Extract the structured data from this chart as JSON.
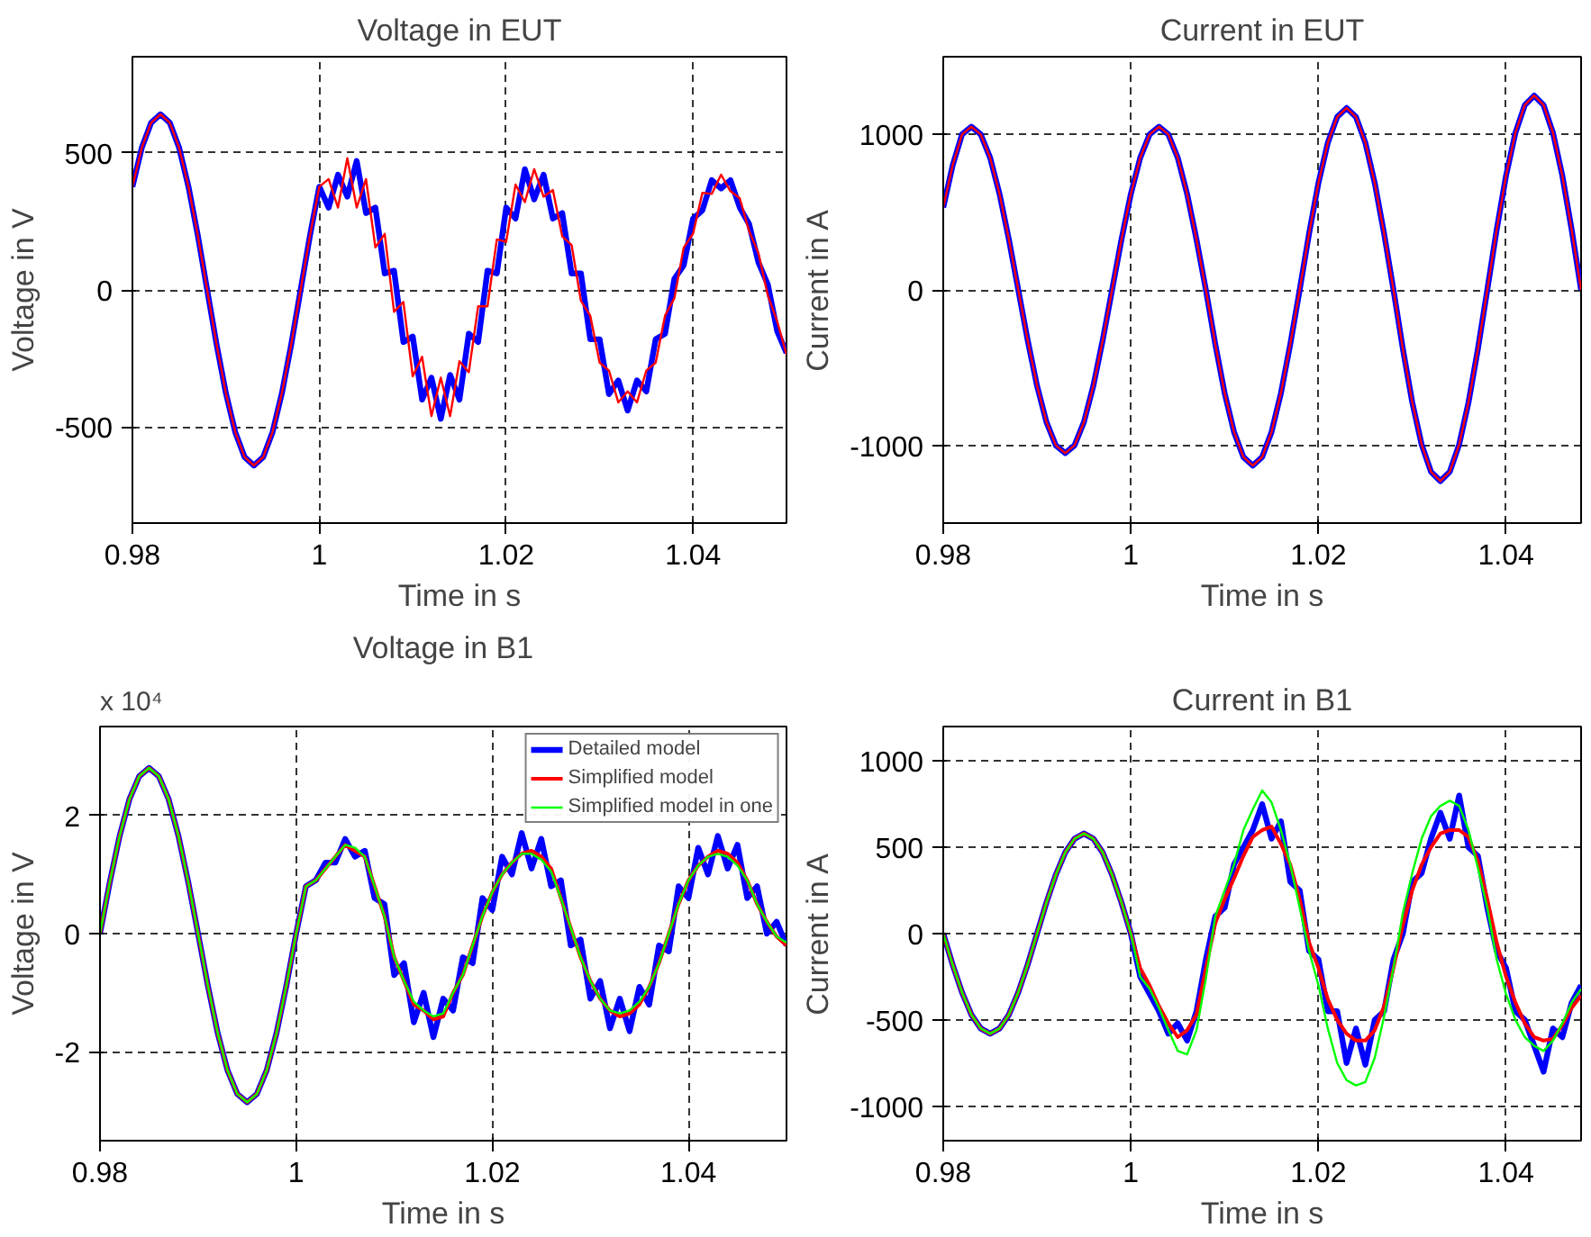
{
  "chart_data": [
    {
      "type": "line",
      "title": "Voltage in EUT",
      "xlabel": "Time in s",
      "ylabel": "Voltage in V",
      "xlim": [
        0.98,
        1.05
      ],
      "ylim": [
        -850,
        850
      ],
      "xticks": [
        0.98,
        1,
        1.02,
        1.04
      ],
      "yticks": [
        -500,
        0,
        500
      ],
      "grid": true,
      "legend": false,
      "marker": "none",
      "line_style": "solid",
      "x": [
        0.98,
        0.981,
        0.982,
        0.983,
        0.984,
        0.985,
        0.986,
        0.987,
        0.988,
        0.989,
        0.99,
        0.991,
        0.992,
        0.993,
        0.994,
        0.995,
        0.996,
        0.997,
        0.998,
        0.999,
        1.0,
        1.001,
        1.002,
        1.003,
        1.004,
        1.005,
        1.006,
        1.007,
        1.008,
        1.009,
        1.01,
        1.011,
        1.012,
        1.013,
        1.014,
        1.015,
        1.016,
        1.017,
        1.018,
        1.019,
        1.02,
        1.021,
        1.022,
        1.023,
        1.024,
        1.025,
        1.026,
        1.027,
        1.028,
        1.029,
        1.03,
        1.031,
        1.032,
        1.033,
        1.034,
        1.035,
        1.036,
        1.037,
        1.038,
        1.039,
        1.04,
        1.041,
        1.042,
        1.043,
        1.044,
        1.045,
        1.046,
        1.047,
        1.048,
        1.049,
        1.05
      ],
      "series": [
        {
          "color": "#0000ff",
          "values": [
            376,
            518,
            609,
            640,
            609,
            518,
            376,
            198,
            0,
            -198,
            -376,
            -518,
            -609,
            -640,
            -609,
            -518,
            -376,
            -198,
            0,
            198,
            376,
            300,
            420,
            340,
            470,
            280,
            300,
            60,
            70,
            -190,
            -170,
            -400,
            -320,
            -470,
            -310,
            -400,
            -160,
            -190,
            70,
            60,
            300,
            260,
            440,
            330,
            420,
            260,
            280,
            60,
            60,
            -180,
            -180,
            -380,
            -330,
            -440,
            -330,
            -370,
            -180,
            -160,
            40,
            90,
            260,
            290,
            400,
            370,
            400,
            300,
            240,
            100,
            20,
            -150,
            -230
          ]
        },
        {
          "color": "#ff0000",
          "values": [
            376,
            518,
            609,
            640,
            609,
            518,
            376,
            198,
            0,
            -198,
            -376,
            -518,
            -609,
            -640,
            -609,
            -518,
            -376,
            -198,
            0,
            198,
            376,
            404,
            300,
            480,
            300,
            404,
            155,
            204,
            -80,
            -44,
            -315,
            -244,
            -460,
            -320,
            -460,
            -260,
            -300,
            -60,
            -60,
            184,
            175,
            384,
            320,
            440,
            340,
            364,
            195,
            164,
            -40,
            -94,
            -265,
            -294,
            -410,
            -370,
            -410,
            -294,
            -265,
            -94,
            -30,
            154,
            205,
            354,
            350,
            420,
            360,
            334,
            215,
            134,
            -20,
            -114,
            -235
          ]
        }
      ]
    },
    {
      "type": "line",
      "title": "Current in EUT",
      "xlabel": "Time in s",
      "ylabel": "Current in A",
      "xlim": [
        0.98,
        1.048
      ],
      "ylim": [
        -1500,
        1500
      ],
      "xticks": [
        0.98,
        1,
        1.02,
        1.04
      ],
      "yticks": [
        -1000,
        0,
        1000
      ],
      "grid": true,
      "legend": false,
      "marker": "none",
      "line_style": "solid",
      "x": [
        0.98,
        0.981,
        0.982,
        0.983,
        0.984,
        0.985,
        0.986,
        0.987,
        0.988,
        0.989,
        0.99,
        0.991,
        0.992,
        0.993,
        0.994,
        0.995,
        0.996,
        0.997,
        0.998,
        0.999,
        1.0,
        1.001,
        1.002,
        1.003,
        1.004,
        1.005,
        1.006,
        1.007,
        1.008,
        1.009,
        1.01,
        1.011,
        1.012,
        1.013,
        1.014,
        1.015,
        1.016,
        1.017,
        1.018,
        1.019,
        1.02,
        1.021,
        1.022,
        1.023,
        1.024,
        1.025,
        1.026,
        1.027,
        1.028,
        1.029,
        1.03,
        1.031,
        1.032,
        1.033,
        1.034,
        1.035,
        1.036,
        1.037,
        1.038,
        1.039,
        1.04,
        1.041,
        1.042,
        1.043,
        1.044,
        1.045,
        1.046,
        1.047,
        1.048
      ],
      "series": [
        {
          "color": "#0000ff",
          "values": [
            530,
            800,
            1000,
            1050,
            1000,
            850,
            617,
            324,
            0,
            -324,
            -617,
            -850,
            -1000,
            -1050,
            -1000,
            -850,
            -617,
            -324,
            0,
            324,
            617,
            850,
            1000,
            1050,
            1000,
            850,
            617,
            324,
            0,
            -349,
            -664,
            -914,
            -1075,
            -1130,
            -1075,
            -914,
            -664,
            -349,
            0,
            362,
            688,
            947,
            1113,
            1170,
            1113,
            947,
            688,
            362,
            0,
            -380,
            -723,
            -995,
            -1170,
            -1230,
            -1170,
            -995,
            -723,
            -380,
            0,
            386,
            735,
            1011,
            1189,
            1250,
            1189,
            1011,
            735,
            386,
            0
          ]
        },
        {
          "color": "#ff0000",
          "values": [
            530,
            800,
            1000,
            1050,
            1000,
            850,
            617,
            324,
            0,
            -324,
            -617,
            -850,
            -1000,
            -1050,
            -1000,
            -850,
            -617,
            -324,
            0,
            324,
            617,
            850,
            1000,
            1050,
            1000,
            850,
            617,
            324,
            0,
            -349,
            -664,
            -914,
            -1075,
            -1130,
            -1075,
            -914,
            -664,
            -349,
            0,
            362,
            688,
            947,
            1113,
            1170,
            1113,
            947,
            688,
            362,
            0,
            -380,
            -723,
            -995,
            -1170,
            -1230,
            -1170,
            -995,
            -723,
            -380,
            0,
            386,
            735,
            1011,
            1189,
            1250,
            1189,
            1011,
            735,
            386,
            0
          ]
        }
      ]
    },
    {
      "type": "line",
      "title": "Voltage in B1",
      "xlabel": "Time in s",
      "ylabel": "Voltage in V",
      "annotations": [
        "x 10⁴"
      ],
      "xlim": [
        0.98,
        1.05
      ],
      "ylim": [
        -3.5,
        3.5
      ],
      "xticks": [
        0.98,
        1,
        1.02,
        1.04
      ],
      "yticks": [
        -2,
        0,
        2
      ],
      "grid": true,
      "legend": "top right",
      "marker": "none",
      "line_style": "solid",
      "x": [
        0.98,
        0.981,
        0.982,
        0.983,
        0.984,
        0.985,
        0.986,
        0.987,
        0.988,
        0.989,
        0.99,
        0.991,
        0.992,
        0.993,
        0.994,
        0.995,
        0.996,
        0.997,
        0.998,
        0.999,
        1.0,
        1.001,
        1.002,
        1.003,
        1.004,
        1.005,
        1.006,
        1.007,
        1.008,
        1.009,
        1.01,
        1.011,
        1.012,
        1.013,
        1.014,
        1.015,
        1.016,
        1.017,
        1.018,
        1.019,
        1.02,
        1.021,
        1.022,
        1.023,
        1.024,
        1.025,
        1.026,
        1.027,
        1.028,
        1.029,
        1.03,
        1.031,
        1.032,
        1.033,
        1.034,
        1.035,
        1.036,
        1.037,
        1.038,
        1.039,
        1.04,
        1.041,
        1.042,
        1.043,
        1.044,
        1.045,
        1.046,
        1.047,
        1.048,
        1.049,
        1.05
      ],
      "series": [
        {
          "name": "Detailed model",
          "color": "#0000ff",
          "values": [
            0,
            0.87,
            1.65,
            2.27,
            2.66,
            2.8,
            2.66,
            2.27,
            1.65,
            0.87,
            0,
            -0.88,
            -1.68,
            -2.31,
            -2.71,
            -2.85,
            -2.71,
            -2.31,
            -1.68,
            -0.88,
            0,
            0.8,
            0.9,
            1.2,
            1.2,
            1.6,
            1.3,
            1.4,
            0.6,
            0.5,
            -0.7,
            -0.5,
            -1.5,
            -1.0,
            -1.75,
            -1.1,
            -1.3,
            -0.4,
            -0.5,
            0.6,
            0.4,
            1.3,
            1.0,
            1.7,
            1.1,
            1.6,
            0.8,
            0.9,
            -0.2,
            -0.1,
            -1.1,
            -0.8,
            -1.6,
            -1.1,
            -1.65,
            -0.9,
            -1.2,
            -0.2,
            -0.3,
            0.8,
            0.6,
            1.45,
            1.0,
            1.65,
            1.1,
            1.5,
            0.6,
            0.8,
            0,
            0.2,
            -0.2
          ]
        },
        {
          "name": "Simplified model",
          "color": "#ff0000",
          "values": [
            0,
            0.87,
            1.65,
            2.27,
            2.66,
            2.8,
            2.66,
            2.27,
            1.65,
            0.87,
            0,
            -0.88,
            -1.68,
            -2.31,
            -2.71,
            -2.85,
            -2.71,
            -2.31,
            -1.68,
            -0.88,
            0,
            0.8,
            0.9,
            1.1,
            1.3,
            1.5,
            1.4,
            1.3,
            0.8,
            0.3,
            -0.4,
            -0.8,
            -1.2,
            -1.3,
            -1.45,
            -1.4,
            -1.0,
            -0.7,
            -0.2,
            0.3,
            0.7,
            1.0,
            1.2,
            1.35,
            1.4,
            1.3,
            1.1,
            0.6,
            0.1,
            -0.4,
            -0.8,
            -1.1,
            -1.3,
            -1.4,
            -1.35,
            -1.2,
            -0.9,
            -0.5,
            0,
            0.5,
            0.9,
            1.15,
            1.3,
            1.4,
            1.35,
            1.2,
            0.9,
            0.5,
            0.2,
            -0.05,
            -0.2
          ]
        },
        {
          "name": "Simplified model in one",
          "color": "#00ff00",
          "values": [
            0,
            0.87,
            1.65,
            2.27,
            2.66,
            2.8,
            2.66,
            2.27,
            1.65,
            0.87,
            0,
            -0.88,
            -1.68,
            -2.31,
            -2.71,
            -2.85,
            -2.71,
            -2.31,
            -1.68,
            -0.88,
            0,
            0.8,
            0.9,
            1.1,
            1.3,
            1.5,
            1.45,
            1.3,
            0.8,
            0.3,
            -0.4,
            -0.8,
            -1.15,
            -1.3,
            -1.4,
            -1.35,
            -1.0,
            -0.7,
            -0.2,
            0.3,
            0.7,
            1.0,
            1.2,
            1.35,
            1.35,
            1.25,
            1.05,
            0.6,
            0.1,
            -0.4,
            -0.8,
            -1.1,
            -1.3,
            -1.35,
            -1.3,
            -1.15,
            -0.9,
            -0.5,
            0,
            0.5,
            0.9,
            1.15,
            1.3,
            1.35,
            1.3,
            1.15,
            0.9,
            0.5,
            0.2,
            -0.05,
            -0.15
          ]
        }
      ]
    },
    {
      "type": "line",
      "title": "Current in B1",
      "xlabel": "Time in s",
      "ylabel": "Current in A",
      "xlim": [
        0.98,
        1.048
      ],
      "ylim": [
        -1200,
        1200
      ],
      "xticks": [
        0.98,
        1,
        1.02,
        1.04
      ],
      "yticks": [
        -1000,
        -500,
        0,
        500,
        1000
      ],
      "grid": true,
      "legend": false,
      "marker": "none",
      "line_style": "solid",
      "x": [
        0.98,
        0.981,
        0.982,
        0.983,
        0.984,
        0.985,
        0.986,
        0.987,
        0.988,
        0.989,
        0.99,
        0.991,
        0.992,
        0.993,
        0.994,
        0.995,
        0.996,
        0.997,
        0.998,
        0.999,
        1.0,
        1.001,
        1.002,
        1.003,
        1.004,
        1.005,
        1.006,
        1.007,
        1.008,
        1.009,
        1.01,
        1.011,
        1.012,
        1.013,
        1.014,
        1.015,
        1.016,
        1.017,
        1.018,
        1.019,
        1.02,
        1.021,
        1.022,
        1.023,
        1.024,
        1.025,
        1.026,
        1.027,
        1.028,
        1.029,
        1.03,
        1.031,
        1.032,
        1.033,
        1.034,
        1.035,
        1.036,
        1.037,
        1.038,
        1.039,
        1.04,
        1.041,
        1.042,
        1.043,
        1.044,
        1.045,
        1.046,
        1.047,
        1.048
      ],
      "series": [
        {
          "color": "#0000ff",
          "values": [
            0,
            -180,
            -340,
            -470,
            -550,
            -580,
            -550,
            -470,
            -340,
            -180,
            0,
            180,
            340,
            470,
            550,
            580,
            550,
            470,
            340,
            180,
            0,
            -250,
            -350,
            -450,
            -580,
            -520,
            -620,
            -450,
            -150,
            100,
            150,
            400,
            500,
            600,
            750,
            550,
            650,
            300,
            250,
            -100,
            -150,
            -450,
            -450,
            -750,
            -550,
            -760,
            -500,
            -450,
            -150,
            0,
            300,
            350,
            550,
            700,
            550,
            800,
            500,
            450,
            150,
            -100,
            -200,
            -450,
            -500,
            -650,
            -800,
            -550,
            -600,
            -400,
            -300
          ]
        },
        {
          "color": "#ff0000",
          "values": [
            0,
            -180,
            -340,
            -470,
            -550,
            -580,
            -550,
            -470,
            -340,
            -180,
            0,
            180,
            340,
            470,
            550,
            580,
            550,
            470,
            340,
            180,
            0,
            -200,
            -300,
            -420,
            -520,
            -600,
            -560,
            -470,
            -200,
            60,
            200,
            320,
            450,
            560,
            600,
            620,
            520,
            400,
            200,
            -50,
            -200,
            -380,
            -500,
            -580,
            -620,
            -620,
            -560,
            -420,
            -200,
            50,
            250,
            400,
            500,
            580,
            600,
            600,
            560,
            420,
            200,
            -50,
            -250,
            -400,
            -520,
            -600,
            -620,
            -610,
            -530,
            -430,
            -360
          ]
        },
        {
          "color": "#00ff00",
          "values": [
            0,
            -180,
            -340,
            -470,
            -550,
            -580,
            -550,
            -470,
            -340,
            -180,
            0,
            180,
            340,
            470,
            550,
            580,
            550,
            470,
            340,
            180,
            0,
            -250,
            -320,
            -430,
            -560,
            -680,
            -700,
            -560,
            -260,
            100,
            250,
            400,
            600,
            720,
            830,
            760,
            600,
            400,
            150,
            -100,
            -300,
            -550,
            -750,
            -850,
            -880,
            -860,
            -720,
            -480,
            -200,
            120,
            350,
            550,
            680,
            740,
            770,
            740,
            600,
            380,
            150,
            -150,
            -350,
            -500,
            -600,
            -650,
            -680,
            -620,
            -520,
            -400,
            -320
          ]
        }
      ]
    }
  ]
}
